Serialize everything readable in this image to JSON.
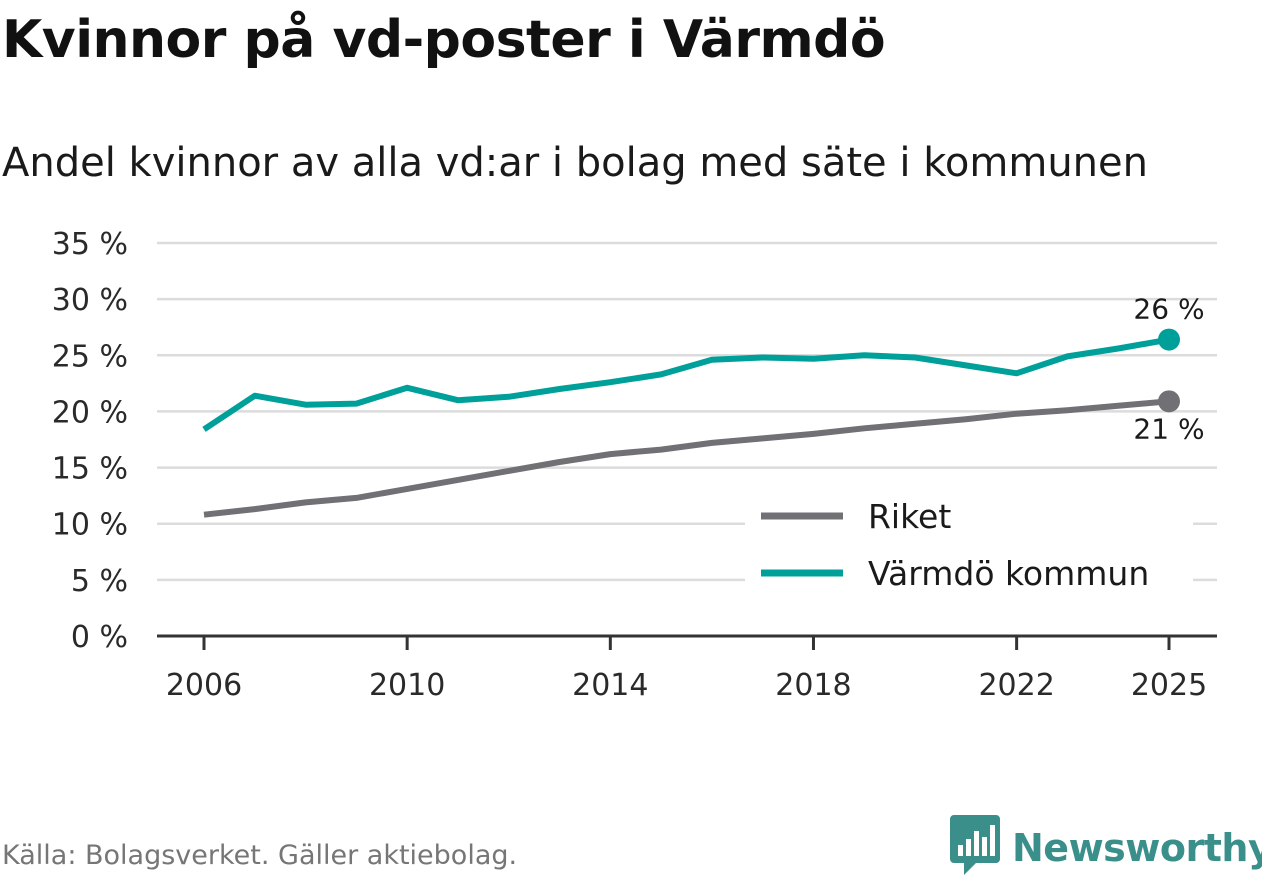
{
  "title": "Kvinnor på vd-poster i Värmdö",
  "subtitle": "Andel kvinnor av alla vd:ar i bolag med säte i kommunen",
  "source": "Källa: Bolagsverket. Gäller aktiebolag.",
  "brand": {
    "name": "Newsworthy",
    "icon": "newsworthy-logo-icon",
    "color": "#3b8f8a"
  },
  "chart_data": {
    "type": "line",
    "title": "Kvinnor på vd-poster i Värmdö",
    "subtitle": "Andel kvinnor av alla vd:ar i bolag med säte i kommunen",
    "xlabel": "",
    "ylabel": "",
    "xlim": [
      2005.0,
      2025.9
    ],
    "ylim": [
      0,
      35
    ],
    "y_ticks": [
      0,
      5,
      10,
      15,
      20,
      25,
      30,
      35
    ],
    "y_tick_labels": [
      "0 %",
      "5 %",
      "10 %",
      "15 %",
      "20 %",
      "25 %",
      "30 %",
      "35 %"
    ],
    "x_ticks": [
      2006,
      2010,
      2014,
      2018,
      2022,
      2025
    ],
    "x_tick_labels": [
      "2006",
      "2010",
      "2014",
      "2018",
      "2022",
      "2025"
    ],
    "grid": true,
    "legend_position": "lower-right",
    "x": [
      2006,
      2007,
      2008,
      2009,
      2010,
      2011,
      2012,
      2013,
      2014,
      2015,
      2016,
      2017,
      2018,
      2019,
      2020,
      2021,
      2022,
      2023,
      2024,
      2025
    ],
    "series": [
      {
        "name": "Riket",
        "color": "#707075",
        "values": [
          10.8,
          11.3,
          11.9,
          12.3,
          13.1,
          13.9,
          14.7,
          15.5,
          16.2,
          16.6,
          17.2,
          17.6,
          18.0,
          18.5,
          18.9,
          19.3,
          19.8,
          20.1,
          20.5,
          20.9
        ],
        "end_label": "21 %",
        "end_label_position": "below"
      },
      {
        "name": "Värmdö kommun",
        "color": "#00a09a",
        "values": [
          18.4,
          21.4,
          20.6,
          20.7,
          22.1,
          21.0,
          21.3,
          22.0,
          22.6,
          23.3,
          24.6,
          24.8,
          24.7,
          25.0,
          24.8,
          24.1,
          23.4,
          24.9,
          25.6,
          26.4
        ],
        "end_label": "26 %",
        "end_label_position": "above"
      }
    ]
  }
}
